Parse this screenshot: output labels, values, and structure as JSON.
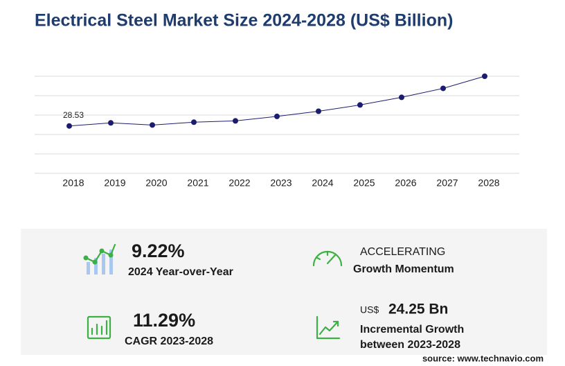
{
  "chart_data": {
    "type": "line",
    "title": "Electrical Steel Market Size 2024-2028 (US$ Billion)",
    "categories": [
      "2018",
      "2019",
      "2020",
      "2021",
      "2022",
      "2023",
      "2024",
      "2025",
      "2026",
      "2027",
      "2028"
    ],
    "values": [
      28.53,
      30.4,
      29.1,
      30.8,
      31.6,
      34.3,
      37.4,
      41.2,
      45.8,
      51.2,
      58.5
    ],
    "value_labels": [
      "28.53",
      null,
      null,
      null,
      null,
      null,
      null,
      null,
      null,
      null,
      null
    ],
    "color": "#1c1c6e",
    "ylim": [
      0,
      58.5
    ],
    "yticks": [
      0,
      11.7,
      23.4,
      35.1,
      46.8,
      58.5
    ],
    "grid": true
  },
  "stats": [
    {
      "value": "9.22%",
      "label": "2024 Year-over-Year"
    },
    {
      "value": "ACCELERATING",
      "label": "Growth Momentum"
    },
    {
      "value": "11.29%",
      "label": "CAGR 2023-2028"
    },
    {
      "prefix": "US$",
      "value": "24.25 Bn",
      "label": "Incremental Growth",
      "label2": "between 2023-2028"
    }
  ],
  "source": "source: www.technavio.com"
}
